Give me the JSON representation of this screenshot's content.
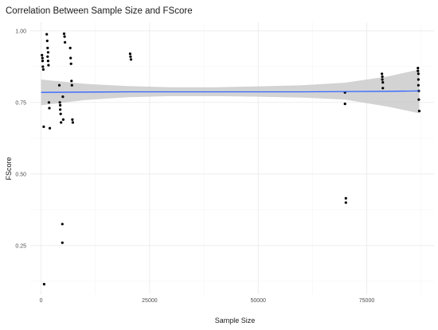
{
  "chart_data": {
    "type": "scatter",
    "title": "Correlation Between Sample Size and FScore",
    "xlabel": "Sample Size",
    "ylabel": "FScore",
    "xlim": [
      -2500,
      90500
    ],
    "ylim": [
      0.08,
      1.03
    ],
    "x_ticks": [
      0,
      25000,
      50000,
      75000
    ],
    "x_tick_labels": [
      "0",
      "25000",
      "50000",
      "75000"
    ],
    "y_ticks": [
      0.25,
      0.5,
      0.75,
      1.0
    ],
    "y_tick_labels": [
      "0.25",
      "0.50",
      "0.75",
      "1.00"
    ],
    "grid": true,
    "legend": "none",
    "colors": {
      "points": "#000000",
      "trend_line": "#3366ff",
      "confidence_band": "#c8c8c8",
      "grid": "#ebebeb"
    },
    "points": [
      {
        "x": 200,
        "y": 0.915
      },
      {
        "x": 300,
        "y": 0.905
      },
      {
        "x": 350,
        "y": 0.895
      },
      {
        "x": 400,
        "y": 0.875
      },
      {
        "x": 500,
        "y": 0.865
      },
      {
        "x": 600,
        "y": 0.665
      },
      {
        "x": 700,
        "y": 0.115
      },
      {
        "x": 1300,
        "y": 0.988
      },
      {
        "x": 1400,
        "y": 0.965
      },
      {
        "x": 1500,
        "y": 0.94
      },
      {
        "x": 1500,
        "y": 0.91
      },
      {
        "x": 1600,
        "y": 0.925
      },
      {
        "x": 1600,
        "y": 0.895
      },
      {
        "x": 1700,
        "y": 0.88
      },
      {
        "x": 1800,
        "y": 0.75
      },
      {
        "x": 1900,
        "y": 0.73
      },
      {
        "x": 2000,
        "y": 0.66
      },
      {
        "x": 4200,
        "y": 0.81
      },
      {
        "x": 4300,
        "y": 0.75
      },
      {
        "x": 4400,
        "y": 0.74
      },
      {
        "x": 4400,
        "y": 0.725
      },
      {
        "x": 4500,
        "y": 0.71
      },
      {
        "x": 4600,
        "y": 0.68
      },
      {
        "x": 4900,
        "y": 0.325
      },
      {
        "x": 4900,
        "y": 0.26
      },
      {
        "x": 5000,
        "y": 0.77
      },
      {
        "x": 5100,
        "y": 0.69
      },
      {
        "x": 5300,
        "y": 0.99
      },
      {
        "x": 5400,
        "y": 0.98
      },
      {
        "x": 5500,
        "y": 0.96
      },
      {
        "x": 6700,
        "y": 0.94
      },
      {
        "x": 6800,
        "y": 0.905
      },
      {
        "x": 6900,
        "y": 0.885
      },
      {
        "x": 7000,
        "y": 0.825
      },
      {
        "x": 7100,
        "y": 0.81
      },
      {
        "x": 7200,
        "y": 0.69
      },
      {
        "x": 7300,
        "y": 0.68
      },
      {
        "x": 20500,
        "y": 0.92
      },
      {
        "x": 20600,
        "y": 0.91
      },
      {
        "x": 20700,
        "y": 0.9
      },
      {
        "x": 70000,
        "y": 0.785
      },
      {
        "x": 70000,
        "y": 0.745
      },
      {
        "x": 70200,
        "y": 0.415
      },
      {
        "x": 70200,
        "y": 0.4
      },
      {
        "x": 78500,
        "y": 0.85
      },
      {
        "x": 78600,
        "y": 0.84
      },
      {
        "x": 78600,
        "y": 0.83
      },
      {
        "x": 78700,
        "y": 0.82
      },
      {
        "x": 78700,
        "y": 0.8
      },
      {
        "x": 86800,
        "y": 0.87
      },
      {
        "x": 86800,
        "y": 0.86
      },
      {
        "x": 86900,
        "y": 0.85
      },
      {
        "x": 86900,
        "y": 0.83
      },
      {
        "x": 86900,
        "y": 0.81
      },
      {
        "x": 87000,
        "y": 0.79
      },
      {
        "x": 87000,
        "y": 0.76
      },
      {
        "x": 87100,
        "y": 0.72
      }
    ],
    "trend": {
      "x": [
        0,
        10000,
        20000,
        30000,
        40000,
        50000,
        60000,
        70000,
        80000,
        87100
      ],
      "y": [
        0.785,
        0.786,
        0.787,
        0.787,
        0.787,
        0.787,
        0.787,
        0.788,
        0.789,
        0.79
      ],
      "lower": [
        0.74,
        0.758,
        0.768,
        0.772,
        0.772,
        0.77,
        0.767,
        0.76,
        0.735,
        0.712
      ],
      "upper": [
        0.83,
        0.815,
        0.807,
        0.803,
        0.803,
        0.806,
        0.81,
        0.819,
        0.841,
        0.865
      ]
    }
  }
}
